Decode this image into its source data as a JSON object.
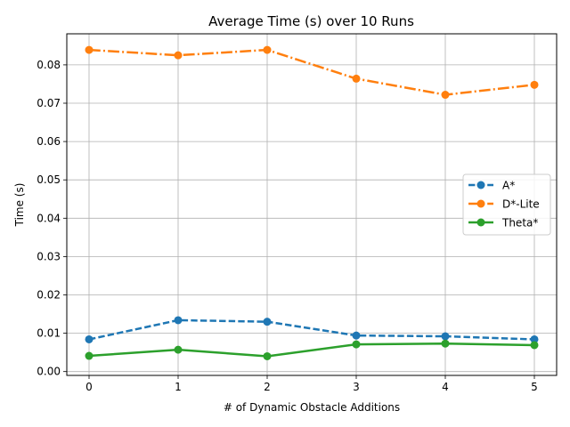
{
  "chart_data": {
    "type": "line",
    "title": "Average Time (s) over 10 Runs",
    "xlabel": "# of Dynamic Obstacle Additions",
    "ylabel": "Time (s)",
    "x": [
      0,
      1,
      2,
      3,
      4,
      5
    ],
    "xlim": [
      -0.25,
      5.25
    ],
    "ylim": [
      -0.001,
      0.0881
    ],
    "xticks": [
      "0",
      "1",
      "2",
      "3",
      "4",
      "5"
    ],
    "yticks": [
      0.0,
      0.01,
      0.02,
      0.03,
      0.04,
      0.05,
      0.06,
      0.07,
      0.08
    ],
    "ytick_labels": [
      "0.00",
      "0.01",
      "0.02",
      "0.03",
      "0.04",
      "0.05",
      "0.06",
      "0.07",
      "0.08"
    ],
    "grid": true,
    "legend_position": "center-right",
    "series": [
      {
        "name": "A*",
        "color": "#1f77b4",
        "linestyle": "dashed",
        "marker": "circle",
        "values": [
          0.0084,
          0.0134,
          0.013,
          0.0094,
          0.0092,
          0.0084
        ]
      },
      {
        "name": "D*-Lite",
        "color": "#ff7f0e",
        "linestyle": "dashdot",
        "marker": "circle",
        "values": [
          0.0839,
          0.0825,
          0.0839,
          0.0764,
          0.0722,
          0.0748
        ]
      },
      {
        "name": "Theta*",
        "color": "#2ca02c",
        "linestyle": "solid",
        "marker": "circle",
        "values": [
          0.0041,
          0.0057,
          0.004,
          0.0071,
          0.0073,
          0.0069
        ]
      }
    ]
  }
}
